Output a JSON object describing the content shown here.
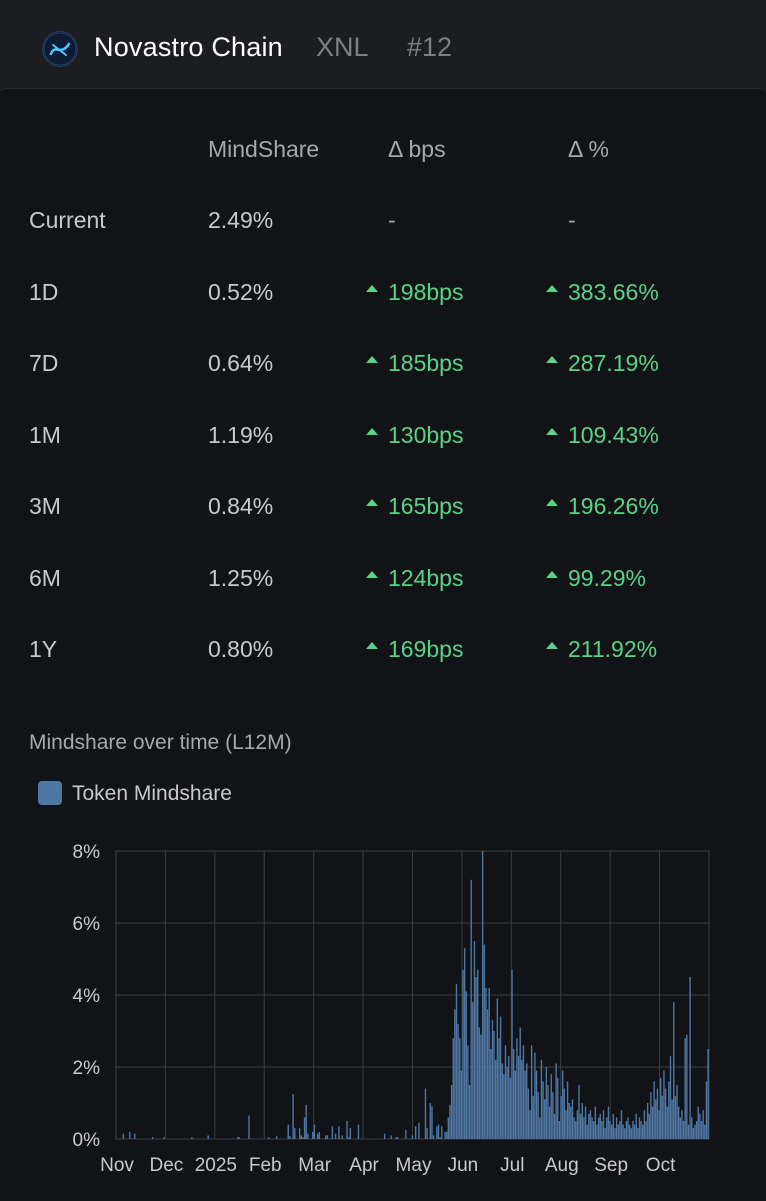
{
  "header": {
    "name": "Novastro Chain",
    "ticker": "XNL",
    "rank": "#12",
    "logo_icon": "novastro-logo-icon"
  },
  "table": {
    "columns": [
      "MindShare",
      "Δ bps",
      "Δ %"
    ],
    "rows": [
      {
        "label": "Current",
        "mindshare": "2.49%",
        "bps": "-",
        "pct": "-",
        "up": false
      },
      {
        "label": "1D",
        "mindshare": "0.52%",
        "bps": "198bps",
        "pct": "383.66%",
        "up": true
      },
      {
        "label": "7D",
        "mindshare": "0.64%",
        "bps": "185bps",
        "pct": "287.19%",
        "up": true
      },
      {
        "label": "1M",
        "mindshare": "1.19%",
        "bps": "130bps",
        "pct": "109.43%",
        "up": true
      },
      {
        "label": "3M",
        "mindshare": "0.84%",
        "bps": "165bps",
        "pct": "196.26%",
        "up": true
      },
      {
        "label": "6M",
        "mindshare": "1.25%",
        "bps": "124bps",
        "pct": "99.29%",
        "up": true
      },
      {
        "label": "1Y",
        "mindshare": "0.80%",
        "bps": "169bps",
        "pct": "211.92%",
        "up": true
      }
    ],
    "up_color": "#59d388"
  },
  "chart_data": {
    "type": "bar",
    "title": "Mindshare over time (L12M)",
    "legend": [
      "Token Mindshare"
    ],
    "legend_placement": "top-left",
    "grid": true,
    "bar_color": "#4f77a3",
    "yticks": [
      "0%",
      "2%",
      "4%",
      "6%",
      "8%"
    ],
    "ylim": [
      0,
      8
    ],
    "xticks": [
      "Nov",
      "Dec",
      "2025",
      "Feb",
      "Mar",
      "Apr",
      "May",
      "Jun",
      "Jul",
      "Aug",
      "Sep",
      "Oct"
    ],
    "series": [
      {
        "name": "Token Mindshare",
        "values": [
          0,
          0,
          0,
          0,
          0.15,
          0,
          0,
          0,
          0.2,
          0,
          0,
          0.15,
          0,
          0,
          0,
          0,
          0,
          0,
          0,
          0,
          0,
          0,
          0.05,
          0,
          0,
          0,
          0,
          0,
          0,
          0.05,
          0,
          0,
          0,
          0,
          0,
          0,
          0,
          0,
          0,
          0,
          0,
          0,
          0,
          0,
          0,
          0,
          0.05,
          0,
          0,
          0,
          0,
          0,
          0,
          0,
          0,
          0,
          0.1,
          0,
          0,
          0,
          0,
          0,
          0,
          0,
          0,
          0,
          0,
          0,
          0,
          0,
          0,
          0,
          0,
          0,
          0.05,
          0.05,
          0,
          0,
          0,
          0,
          0,
          0.65,
          0,
          0,
          0,
          0,
          0,
          0,
          0,
          0,
          0,
          0,
          0,
          0.05,
          0,
          0,
          0,
          0,
          0.08,
          0,
          0,
          0,
          0,
          0,
          0,
          0.4,
          0.08,
          0,
          1.25,
          0.3,
          0,
          0,
          0.3,
          0.1,
          0.05,
          0.6,
          0.95,
          0.15,
          0,
          0,
          0.2,
          0.4,
          0,
          0.15,
          0.2,
          0,
          0,
          0,
          0.1,
          0.1,
          0,
          0,
          0.35,
          0,
          0.15,
          0,
          0.35,
          0,
          0.1,
          0,
          0,
          0.5,
          0.05,
          0.3,
          0,
          0,
          0,
          0,
          0.4,
          0,
          0,
          0,
          0,
          0,
          0,
          0,
          0,
          0,
          0,
          0,
          0,
          0,
          0,
          0,
          0.15,
          0,
          0,
          0,
          0.1,
          0,
          0,
          0.05,
          0.05,
          0,
          0,
          0,
          0,
          0.25,
          0,
          0,
          0,
          0.1,
          0,
          0.35,
          0,
          0.45,
          0,
          0,
          0,
          1.4,
          0.3,
          0,
          1.0,
          0.9,
          0.1,
          0,
          0.35,
          0.4,
          0.05,
          0.35,
          0,
          0.2,
          0.2,
          0.6,
          0.95,
          1.5,
          2.8,
          3.6,
          4.3,
          3.2,
          2.8,
          1.9,
          4.7,
          5.3,
          4.1,
          2.6,
          1.5,
          7.2,
          3.8,
          5.5,
          4.5,
          4.7,
          3.1,
          2.9,
          8.0,
          5.4,
          4.2,
          3.6,
          4.2,
          2.5,
          3.3,
          3.0,
          2.2,
          3.9,
          2.8,
          3.4,
          2.1,
          1.8,
          2.6,
          2.0,
          2.3,
          1.7,
          4.7,
          2.5,
          1.9,
          2.8,
          2.3,
          3.1,
          2.2,
          2.6,
          1.9,
          2.1,
          1.4,
          0.8,
          2.6,
          1.2,
          2.4,
          1.9,
          1.3,
          0.6,
          2.2,
          1.6,
          1.1,
          2.0,
          1.5,
          0.9,
          1.8,
          1.3,
          0.7,
          2.1,
          1.7,
          0.5,
          1.2,
          1.9,
          1.4,
          0.8,
          1.6,
          1.0,
          0.9,
          1.1,
          0.6,
          0.5,
          0.8,
          1.5,
          0.7,
          1.0,
          0.6,
          0.9,
          0.4,
          0.7,
          0.8,
          0.6,
          0.5,
          0.9,
          0.4,
          0.6,
          0.7,
          0.5,
          0.8,
          0.3,
          0.6,
          0.9,
          0.5,
          0.4,
          0.7,
          0.3,
          0.6,
          0.4,
          0.5,
          0.8,
          0.4,
          0.3,
          0.5,
          0.6,
          0.4,
          0.3,
          0.5,
          0.4,
          0.7,
          0.3,
          0.6,
          0.5,
          0.4,
          0.8,
          0.5,
          1.0,
          0.7,
          1.3,
          0.9,
          1.6,
          1.1,
          1.4,
          0.8,
          1.7,
          1.2,
          1.9,
          1.4,
          0.9,
          1.6,
          2.3,
          1.1,
          3.8,
          1.2,
          1.5,
          0.9,
          0.6,
          0.8,
          0.5,
          2.8,
          2.9,
          0.4,
          4.5,
          0.6,
          0.3,
          0.4,
          0.5,
          0.9,
          0.7,
          0.5,
          0.8,
          0.4,
          1.6,
          2.5
        ]
      }
    ]
  }
}
